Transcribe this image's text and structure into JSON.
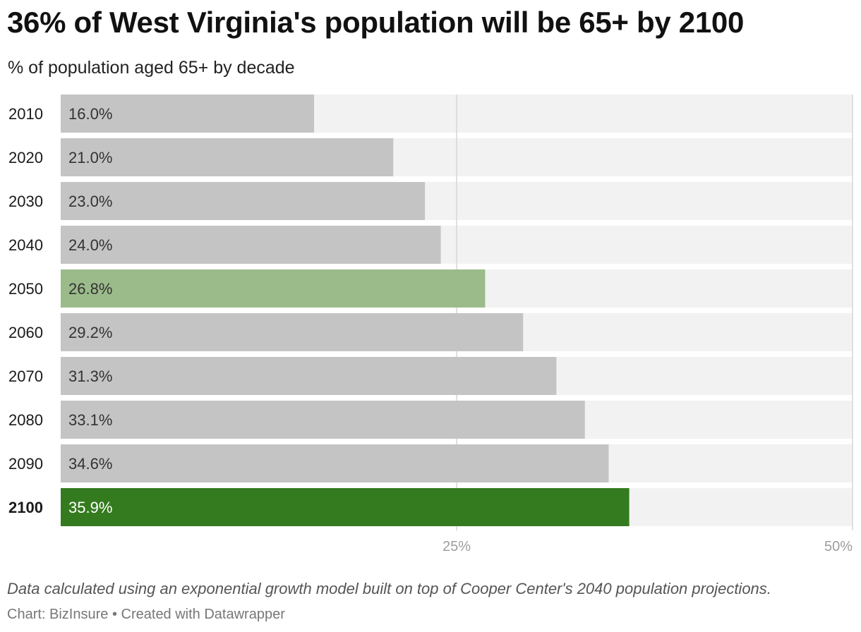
{
  "header": {
    "title": "36% of West Virginia's population will be 65+ by 2100",
    "subtitle": "% of population aged 65+ by decade"
  },
  "footer": {
    "note": "Data calculated using an exponential growth model built on top of Cooper Center's 2040 population projections.",
    "credit_source": "Chart: BizInsure",
    "credit_separator": "•",
    "credit_tool": "Created with Datawrapper"
  },
  "colors": {
    "bar_default": "#c4c4c4",
    "bar_highlight_light": "#9bbb8b",
    "bar_highlight_dark": "#347b1f",
    "track": "#f2f2f2",
    "grid": "#d6d6d6",
    "tick_text": "#9e9e9e"
  },
  "chart_data": {
    "type": "bar",
    "orientation": "horizontal",
    "title": "36% of West Virginia's population will be 65+ by 2100",
    "subtitle": "% of population aged 65+ by decade",
    "categories": [
      "2010",
      "2020",
      "2030",
      "2040",
      "2050",
      "2060",
      "2070",
      "2080",
      "2090",
      "2100"
    ],
    "values": [
      16.0,
      21.0,
      23.0,
      24.0,
      26.8,
      29.2,
      31.3,
      33.1,
      34.6,
      35.9
    ],
    "value_labels": [
      "16.0%",
      "21.0%",
      "23.0%",
      "24.0%",
      "26.8%",
      "29.2%",
      "31.3%",
      "33.1%",
      "34.6%",
      "35.9%"
    ],
    "highlight": [
      "none",
      "none",
      "none",
      "none",
      "light",
      "none",
      "none",
      "none",
      "none",
      "dark"
    ],
    "bold_categories": [
      "2100"
    ],
    "xlim": [
      0,
      50
    ],
    "xticks": [
      25,
      50
    ],
    "xtick_labels": [
      "25%",
      "50%"
    ],
    "grid": true,
    "xlabel": "",
    "ylabel": ""
  }
}
